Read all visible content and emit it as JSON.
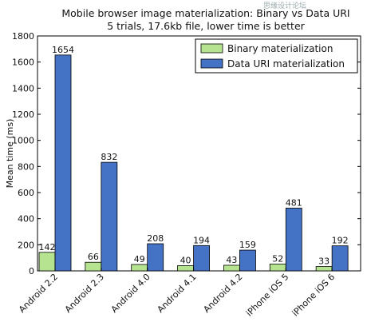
{
  "chart_data": {
    "type": "bar",
    "title": "Mobile browser image materialization: Binary vs Data URI",
    "subtitle": "5 trials, 17.6kb file, lower time is better",
    "xlabel": "",
    "ylabel": "Mean time (ms)",
    "ylim": [
      0,
      1800
    ],
    "yticks": [
      0,
      200,
      400,
      600,
      800,
      1000,
      1200,
      1400,
      1600,
      1800
    ],
    "categories": [
      "Android 2.2",
      "Android 2.3",
      "Android 4.0",
      "Android 4.1",
      "Android 4.2",
      "iPhone iOS 5",
      "iPhone iOS 6"
    ],
    "series": [
      {
        "name": "Binary materialization",
        "color": "#b5e38f",
        "values": [
          142,
          66,
          49,
          40,
          43,
          52,
          33
        ]
      },
      {
        "name": "Data URI materialization",
        "color": "#4472c4",
        "values": [
          1654,
          832,
          208,
          194,
          159,
          481,
          192
        ]
      }
    ],
    "legend_position": "top-right",
    "grid": false
  },
  "watermark": "思缘设计论坛"
}
